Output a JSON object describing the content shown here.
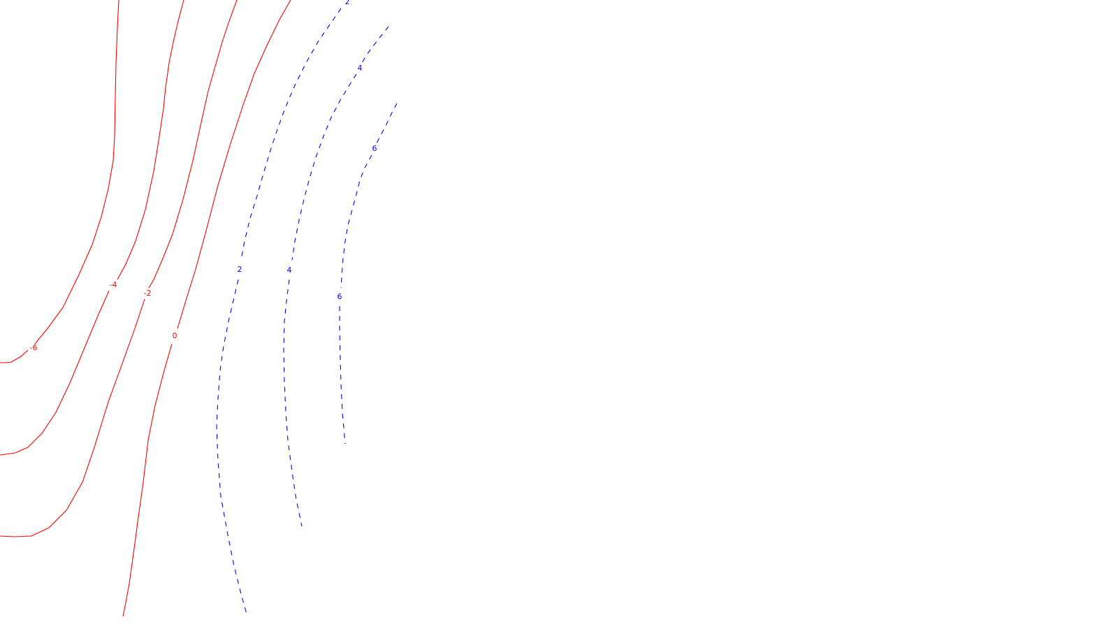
{
  "chart_data": {
    "type": "contour",
    "title": "",
    "xlabel": "",
    "ylabel": "",
    "grid": false,
    "legend": "none",
    "style": {
      "negative": {
        "color": "#ff0000",
        "dash": "solid"
      },
      "positive": {
        "color": "#0000ff",
        "dash": "dashed"
      }
    },
    "levels": [
      {
        "level": -6,
        "label": "-6",
        "sign": "negative"
      },
      {
        "level": -4,
        "label": "-4",
        "sign": "negative"
      },
      {
        "level": -2,
        "label": "-2",
        "sign": "negative"
      },
      {
        "level": 0,
        "label": "0",
        "sign": "negative"
      },
      {
        "level": 2,
        "label": "2",
        "sign": "positive"
      },
      {
        "level": 4,
        "label": "4",
        "sign": "positive"
      },
      {
        "level": 6,
        "label": "6",
        "sign": "positive"
      }
    ]
  }
}
